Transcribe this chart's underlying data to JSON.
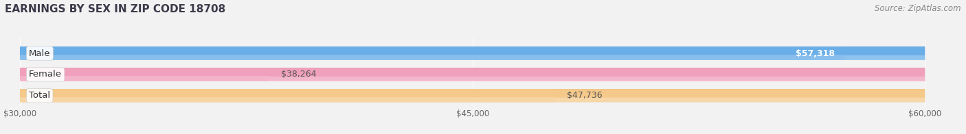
{
  "title": "EARNINGS BY SEX IN ZIP CODE 18708",
  "source": "Source: ZipAtlas.com",
  "categories": [
    "Male",
    "Female",
    "Total"
  ],
  "values": [
    57318,
    38264,
    47736
  ],
  "labels": [
    "$57,318",
    "$38,264",
    "$47,736"
  ],
  "label_inside": [
    true,
    false,
    false
  ],
  "label_colors": [
    "#ffffff",
    "#555555",
    "#555555"
  ],
  "bar_colors": [
    "#6aaee8",
    "#f0a0bc",
    "#f5c98a"
  ],
  "xmin": 30000,
  "xmax": 60000,
  "xticks": [
    30000,
    45000,
    60000
  ],
  "xticklabels": [
    "$30,000",
    "$45,000",
    "$60,000"
  ],
  "background_color": "#f2f2f2",
  "bar_bg_color": "#e2e2e2",
  "title_fontsize": 11,
  "source_fontsize": 8.5,
  "label_fontsize": 9,
  "category_fontsize": 9.5,
  "tick_fontsize": 8.5
}
